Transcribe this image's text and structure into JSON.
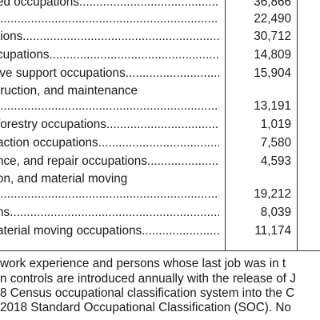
{
  "table": {
    "rows": [
      {
        "label": "ed occupations",
        "leader": true,
        "value": "36,866"
      },
      {
        "label": "",
        "leader": true,
        "value": "22,490"
      },
      {
        "label": "tions",
        "leader": true,
        "value": "30,712"
      },
      {
        "label": "cupations",
        "leader": true,
        "value": "14,809"
      },
      {
        "label": "ive support occupations",
        "leader": true,
        "value": "15,904"
      },
      {
        "label": "truction, and maintenance",
        "leader": false,
        "value": ""
      },
      {
        "label": "",
        "leader": true,
        "value": "13,191"
      },
      {
        "label": "forestry occupations",
        "leader": true,
        "value": "1,019"
      },
      {
        "label": "action occupations",
        "leader": true,
        "value": "7,580"
      },
      {
        "label": "nce, and repair occupations",
        "leader": true,
        "value": "4,593"
      },
      {
        "label": "on, and material moving",
        "leader": false,
        "value": ""
      },
      {
        "label": "",
        "leader": true,
        "value": "19,212"
      },
      {
        "label": "ns",
        "leader": true,
        "value": "8,039"
      },
      {
        "label": "aterial moving occupations",
        "leader": true,
        "value": "11,174"
      }
    ]
  },
  "footnotes": [
    "work experience and persons whose last job was in t",
    "n controls are introduced annually with the release of J",
    "8 Census occupational classification system into the C",
    " 2018 Standard Occupational Classification (SOC). No"
  ]
}
